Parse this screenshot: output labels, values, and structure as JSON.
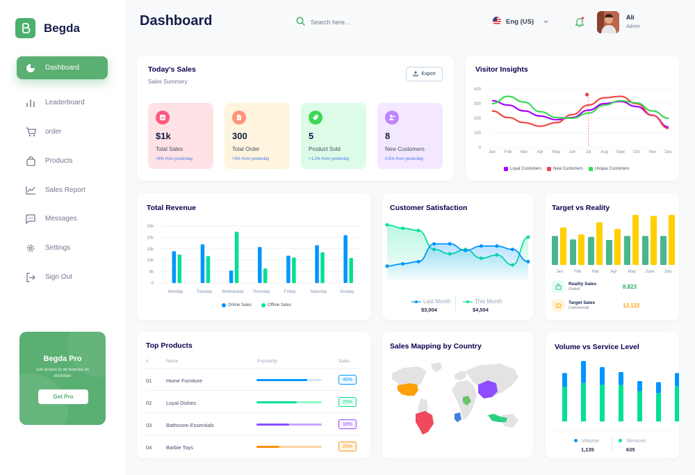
{
  "app": {
    "name": "Begda",
    "page_title": "Dashboard"
  },
  "search": {
    "placeholder": "Search here..."
  },
  "language": {
    "label": "Eng (US)"
  },
  "user": {
    "name": "Ali",
    "role": "Admin"
  },
  "sidebar": {
    "items": [
      {
        "label": "Dashboard",
        "icon": "pie-chart-icon",
        "active": true
      },
      {
        "label": "Leaderboard",
        "icon": "bar-chart-icon"
      },
      {
        "label": "order",
        "icon": "cart-icon"
      },
      {
        "label": "Products",
        "icon": "bag-icon"
      },
      {
        "label": "Sales Report",
        "icon": "line-chart-icon"
      },
      {
        "label": "Messages",
        "icon": "message-icon"
      },
      {
        "label": "Settings",
        "icon": "gear-icon"
      },
      {
        "label": "Sign Out",
        "icon": "sign-out-icon"
      }
    ],
    "promo": {
      "title": "Begda Pro",
      "text": "Get access to all features on tetumbas",
      "button": "Get Pro"
    }
  },
  "todays_sales": {
    "title": "Today's Sales",
    "subtitle": "Sales Summery",
    "export_label": "Export",
    "stats": [
      {
        "value": "$1k",
        "label": "Total Sales",
        "delta": "+8% from yesterday",
        "bg": "#ffe2e5",
        "icon_bg": "#fa5a7d"
      },
      {
        "value": "300",
        "label": "Total Order",
        "delta": "+5% from yesterday",
        "bg": "#fff4de",
        "icon_bg": "#ff947a"
      },
      {
        "value": "5",
        "label": "Product Sold",
        "delta": "+1,2% from yesterday",
        "bg": "#dcfce7",
        "icon_bg": "#3cd856"
      },
      {
        "value": "8",
        "label": "New Customers",
        "delta": "0,5% from yesterday",
        "bg": "#f3e8ff",
        "icon_bg": "#bf83ff"
      }
    ]
  },
  "visitor_insights": {
    "title": "Visitor Insights"
  },
  "total_revenue": {
    "title": "Total Revenue"
  },
  "customer_satisfaction": {
    "title": "Customer Satisfaction"
  },
  "target_vs_reality": {
    "title": "Target vs Reality",
    "rows": [
      {
        "label": "Reality Sales",
        "sub": "Global",
        "value": "8.823",
        "color": "#4ab58e"
      },
      {
        "label": "Target Sales",
        "sub": "Commercial",
        "value": "12.122",
        "color": "#ffcf00"
      }
    ]
  },
  "top_products": {
    "title": "Top Products",
    "columns": [
      "#",
      "Name",
      "Popularity",
      "Sales"
    ],
    "rows": [
      {
        "num": "01",
        "name": "Home Furniture",
        "pct": "45%",
        "fill": 0.78,
        "color": "#0095ff"
      },
      {
        "num": "02",
        "name": "Loyal Dishes",
        "pct": "29%",
        "fill": 0.62,
        "color": "#00e096"
      },
      {
        "num": "03",
        "name": "Bathroom Essentials",
        "pct": "18%",
        "fill": 0.5,
        "color": "#884dff"
      },
      {
        "num": "04",
        "name": "Barbie Toys",
        "pct": "25%",
        "fill": 0.35,
        "color": "#ff8f0d"
      }
    ]
  },
  "sales_mapping": {
    "title": "Sales Mapping by Country"
  },
  "volume_service": {
    "title": "Volume vs Service Level"
  },
  "chart_data": [
    {
      "type": "line",
      "title": "Visitor Insights",
      "categories": [
        "Jan",
        "Feb",
        "Mar",
        "Apr",
        "May",
        "Jun",
        "Jul",
        "Aug",
        "Sept",
        "Oct",
        "Nov",
        "Dec"
      ],
      "ylim": [
        0,
        400
      ],
      "yticks": [
        0,
        100,
        200,
        300,
        400
      ],
      "series": [
        {
          "name": "Loyal Customers",
          "color": "#a700ff",
          "values": [
            320,
            290,
            250,
            215,
            190,
            205,
            255,
            300,
            315,
            280,
            220,
            140
          ]
        },
        {
          "name": "New Customers",
          "color": "#ef4444",
          "values": [
            250,
            205,
            170,
            145,
            170,
            225,
            290,
            340,
            350,
            300,
            220,
            130
          ]
        },
        {
          "name": "Unique Customers",
          "color": "#3cd856",
          "values": [
            300,
            350,
            310,
            245,
            205,
            200,
            235,
            290,
            320,
            305,
            250,
            200
          ]
        }
      ],
      "legend": "bottom"
    },
    {
      "type": "bar",
      "title": "Total Revenue",
      "categories": [
        "Monday",
        "Tuesday",
        "Wednesday",
        "Thursday",
        "Friday",
        "Saturday",
        "Sunday"
      ],
      "ylim": [
        0,
        25000
      ],
      "yticks": [
        "0",
        "5k",
        "10k",
        "15k",
        "20k",
        "25k"
      ],
      "series": [
        {
          "name": "Online Sales",
          "color": "#0095ff",
          "values": [
            14000,
            17000,
            5500,
            15800,
            12000,
            16600,
            21000
          ]
        },
        {
          "name": "Offline Sales",
          "color": "#00e096",
          "values": [
            12500,
            11800,
            22500,
            6400,
            11200,
            13500,
            11000
          ]
        }
      ],
      "legend": "bottom"
    },
    {
      "type": "area",
      "title": "Customer Satisfaction",
      "series": [
        {
          "name": "Last Month",
          "color": "#0095ff",
          "total": "$3,004",
          "values": [
            2.4,
            2.6,
            2.8,
            4.4,
            4.4,
            3.8,
            4.2,
            4.2,
            3.9,
            2.8
          ]
        },
        {
          "name": "This Month",
          "color": "#07e098",
          "total": "$4,504",
          "values": [
            4.6,
            4.3,
            4.1,
            2.4,
            2.0,
            2.4,
            1.6,
            1.9,
            1.0,
            3.5
          ]
        }
      ],
      "legend": "bottom"
    },
    {
      "type": "bar",
      "title": "Target vs Reality",
      "categories": [
        "Jan",
        "Feb",
        "Mar",
        "Apr",
        "May",
        "June",
        "July"
      ],
      "series": [
        {
          "name": "Reality Sales",
          "color": "#4ab58e",
          "values": [
            58,
            51,
            56,
            50,
            58,
            58,
            58
          ]
        },
        {
          "name": "Target Sales",
          "color": "#ffcf00",
          "values": [
            75,
            61,
            85,
            72,
            100,
            98,
            100
          ]
        }
      ]
    },
    {
      "type": "bar",
      "title": "Volume vs Service Level",
      "stacked": true,
      "series": [
        {
          "name": "Volume",
          "color": "#0095ff",
          "total": "1,135",
          "values": [
            14,
            22,
            18,
            13,
            10,
            11,
            13
          ]
        },
        {
          "name": "Services",
          "color": "#00e096",
          "total": "635",
          "values": [
            34,
            38,
            36,
            36,
            30,
            28,
            35
          ]
        }
      ],
      "legend": "bottom"
    }
  ]
}
